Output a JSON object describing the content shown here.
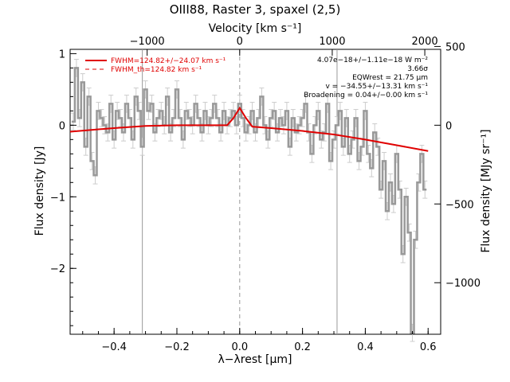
{
  "chart_data": {
    "type": "line",
    "title": "OIII88, Raster 3, spaxel (2,5)",
    "xlabel": "λ−λrest [μm]",
    "x_top_label": "Velocity [km s⁻¹]",
    "ylabel": "Flux density [Jy]",
    "y_right_label": "Flux density [MJy sr⁻¹]",
    "xlim": [
      -0.54,
      0.64
    ],
    "ylim": [
      -2.92,
      1.06
    ],
    "x_ticks": [
      "−0.4",
      "−0.2",
      "0.0",
      "0.2",
      "0.4",
      "0.6"
    ],
    "y_ticks": [
      "−2",
      "−1",
      "0",
      "1"
    ],
    "top_ticks": [
      "−1000",
      "0",
      "1000",
      "2000"
    ],
    "right_ticks": [
      "500",
      "0",
      "−500",
      "−1000"
    ],
    "grid": false,
    "vertical_lines": [
      -0.31,
      0.0,
      0.31
    ],
    "series": [
      {
        "name": "",
        "color": "#999999",
        "x": [
          -0.53,
          -0.52,
          -0.51,
          -0.5,
          -0.49,
          -0.48,
          -0.47,
          -0.46,
          -0.45,
          -0.44,
          -0.43,
          -0.42,
          -0.41,
          -0.4,
          -0.39,
          -0.38,
          -0.37,
          -0.36,
          -0.35,
          -0.34,
          -0.33,
          -0.32,
          -0.31,
          -0.3,
          -0.29,
          -0.28,
          -0.27,
          -0.26,
          -0.25,
          -0.24,
          -0.23,
          -0.22,
          -0.21,
          -0.2,
          -0.19,
          -0.18,
          -0.17,
          -0.16,
          -0.15,
          -0.14,
          -0.13,
          -0.12,
          -0.11,
          -0.1,
          -0.09,
          -0.08,
          -0.07,
          -0.06,
          -0.05,
          -0.04,
          -0.03,
          -0.02,
          -0.01,
          0.0,
          0.01,
          0.02,
          0.03,
          0.04,
          0.05,
          0.06,
          0.07,
          0.08,
          0.09,
          0.1,
          0.11,
          0.12,
          0.13,
          0.14,
          0.15,
          0.16,
          0.17,
          0.18,
          0.19,
          0.2,
          0.21,
          0.22,
          0.23,
          0.24,
          0.25,
          0.26,
          0.27,
          0.28,
          0.29,
          0.3,
          0.31,
          0.32,
          0.33,
          0.34,
          0.35,
          0.36,
          0.37,
          0.38,
          0.39,
          0.4,
          0.41,
          0.42,
          0.43,
          0.44,
          0.45,
          0.46,
          0.47,
          0.48,
          0.49,
          0.5,
          0.51,
          0.52,
          0.53,
          0.54,
          0.55,
          0.56,
          0.57,
          0.58,
          0.59
        ],
        "y": [
          0.05,
          0.8,
          0.1,
          0.6,
          -0.3,
          0.4,
          -0.5,
          -0.7,
          0.2,
          0.1,
          0.0,
          -0.1,
          0.3,
          -0.2,
          0.2,
          0.1,
          -0.1,
          0.3,
          0.1,
          -0.2,
          0.4,
          0.2,
          -0.3,
          0.5,
          0.2,
          0.3,
          -0.1,
          0.1,
          0.2,
          0.0,
          0.4,
          -0.1,
          0.1,
          0.5,
          0.1,
          -0.2,
          0.2,
          0.1,
          0.0,
          0.3,
          0.1,
          -0.1,
          0.2,
          0.0,
          0.1,
          0.3,
          0.1,
          -0.1,
          0.2,
          0.0,
          0.1,
          0.2,
          0.0,
          0.3,
          0.1,
          -0.1,
          0.0,
          0.2,
          -0.1,
          0.1,
          0.4,
          0.0,
          -0.2,
          0.1,
          0.2,
          -0.1,
          0.1,
          0.0,
          0.2,
          -0.3,
          0.1,
          -0.1,
          0.0,
          0.1,
          0.3,
          -0.1,
          -0.4,
          0.0,
          0.2,
          -0.2,
          -0.1,
          0.3,
          -0.5,
          -0.2,
          0.0,
          0.2,
          -0.3,
          0.1,
          -0.4,
          -0.2,
          0.1,
          -0.5,
          -0.3,
          0.2,
          -0.4,
          -0.6,
          -0.1,
          -0.3,
          -0.9,
          -0.5,
          -1.2,
          -0.8,
          -1.1,
          -0.4,
          -0.9,
          -1.8,
          -1.0,
          -1.5,
          -2.9,
          -1.6,
          -0.8,
          -0.4,
          -0.9
        ]
      },
      {
        "name": "FWHM=124.82+/−24.07 km s⁻¹",
        "color": "#e00000",
        "x": [
          -0.54,
          -0.4,
          -0.3,
          -0.2,
          -0.1,
          -0.04,
          -0.02,
          0.0,
          0.02,
          0.04,
          0.1,
          0.2,
          0.3,
          0.4,
          0.5,
          0.6
        ],
        "y": [
          -0.09,
          -0.04,
          -0.01,
          0.0,
          0.0,
          0.0,
          0.1,
          0.24,
          0.1,
          -0.02,
          -0.04,
          -0.08,
          -0.13,
          -0.2,
          -0.28,
          -0.36
        ]
      }
    ],
    "legend": {
      "position": "top-left",
      "entries": [
        "FWHM=124.82+/−24.07 km s⁻¹",
        "FWHM_th=124.82 km s⁻¹"
      ]
    },
    "annotations": [
      "4.07e−18+/−1.11e−18 W m⁻²",
      "3.66σ",
      "EQWrest = 21.75 μm",
      "v = −34.55+/−13.31 km s⁻¹",
      "Broadening = 0.04+/−0.00 km s⁻¹"
    ],
    "colors": {
      "data": "#999999",
      "fit": "#e00000",
      "axis": "#000000",
      "vline": "#999999"
    }
  }
}
